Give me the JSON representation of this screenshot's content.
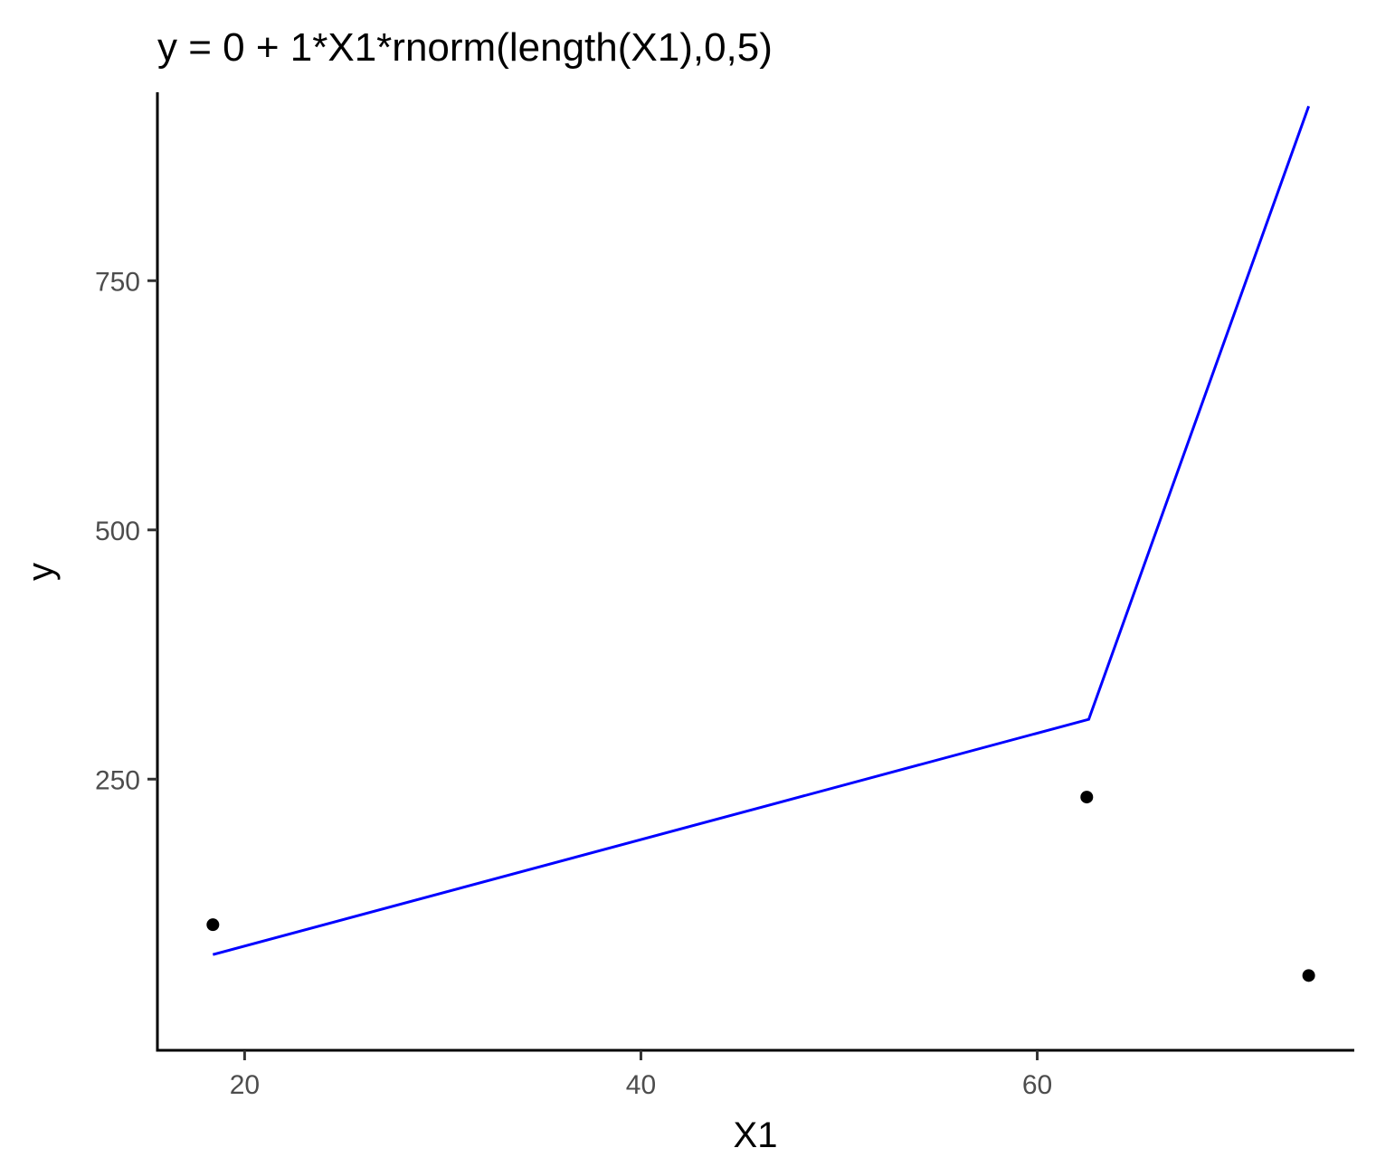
{
  "chart_data": {
    "type": "scatter",
    "title": "y = 0 + 1*X1*rnorm(length(X1),0,5)",
    "xlabel": "X1",
    "ylabel": "y",
    "xlim": [
      15.6,
      76.0
    ],
    "ylim": [
      -22,
      939
    ],
    "xticks": [
      20,
      40,
      60
    ],
    "yticks": [
      250,
      500,
      750
    ],
    "grid": false,
    "legend": "none",
    "series": [
      {
        "kind": "points",
        "color": "#000000",
        "points": [
          {
            "x": 18.4,
            "y": 104
          },
          {
            "x": 62.5,
            "y": 232
          },
          {
            "x": 73.7,
            "y": 53
          }
        ]
      },
      {
        "kind": "line",
        "color": "#0000ff",
        "points": [
          {
            "x": 18.4,
            "y": 74
          },
          {
            "x": 62.6,
            "y": 310
          },
          {
            "x": 73.7,
            "y": 925
          }
        ]
      }
    ]
  }
}
